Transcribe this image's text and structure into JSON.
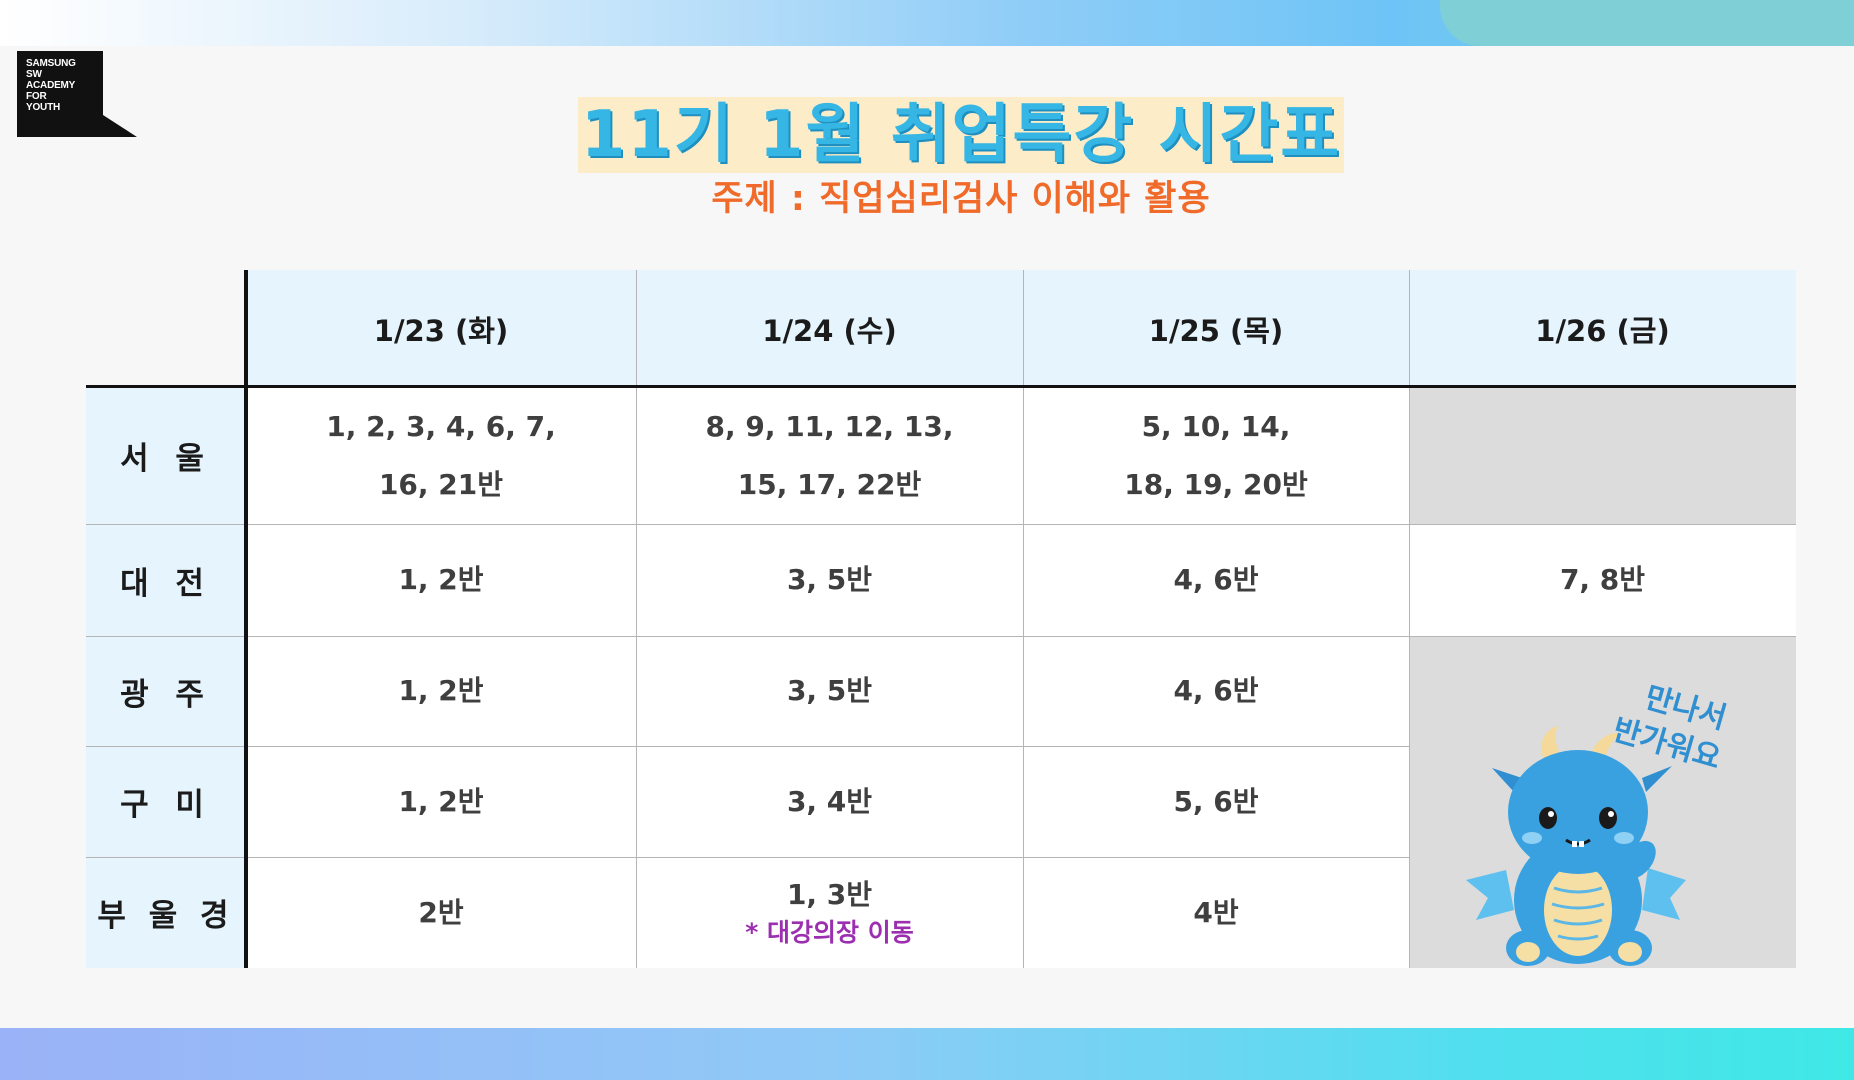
{
  "logo": {
    "lines": [
      "SAMSUNG",
      "SW",
      "ACADEMY",
      "FOR",
      "YOUTH"
    ]
  },
  "title": "11기 1월 취업특강 시간표",
  "subtitle": "주제 : 직업심리검사 이해와 활용",
  "table": {
    "headers": [
      "1/23 (화)",
      "1/24 (수)",
      "1/25 (목)",
      "1/26 (금)"
    ],
    "rows": [
      {
        "label": "서 울",
        "cells": [
          [
            "1, 2, 3, 4, 6, 7,",
            "16, 21반"
          ],
          [
            "8, 9, 11, 12, 13,",
            "15, 17, 22반"
          ],
          [
            "5, 10, 14,",
            "18, 19, 20반"
          ],
          []
        ]
      },
      {
        "label": "대 전",
        "cells": [
          [
            "1, 2반"
          ],
          [
            "3, 5반"
          ],
          [
            "4, 6반"
          ],
          [
            "7, 8반"
          ]
        ]
      },
      {
        "label": "광 주",
        "cells": [
          [
            "1, 2반"
          ],
          [
            "3, 5반"
          ],
          [
            "4, 6반"
          ]
        ]
      },
      {
        "label": "구 미",
        "cells": [
          [
            "1, 2반"
          ],
          [
            "3, 4반"
          ],
          [
            "5, 6반"
          ]
        ]
      },
      {
        "label": "부 울 경",
        "cells": [
          [
            "2반"
          ],
          [
            "1, 3반"
          ],
          [
            "4반"
          ]
        ]
      }
    ],
    "note": "* 대강의장 이동"
  },
  "mascot": {
    "text_line1": "만나서",
    "text_line2": "반가워요"
  },
  "colors": {
    "title": "#35b6e4",
    "subtitle": "#f06a2a",
    "note": "#9b2fb0",
    "header_bg": "#e6f5fd"
  }
}
